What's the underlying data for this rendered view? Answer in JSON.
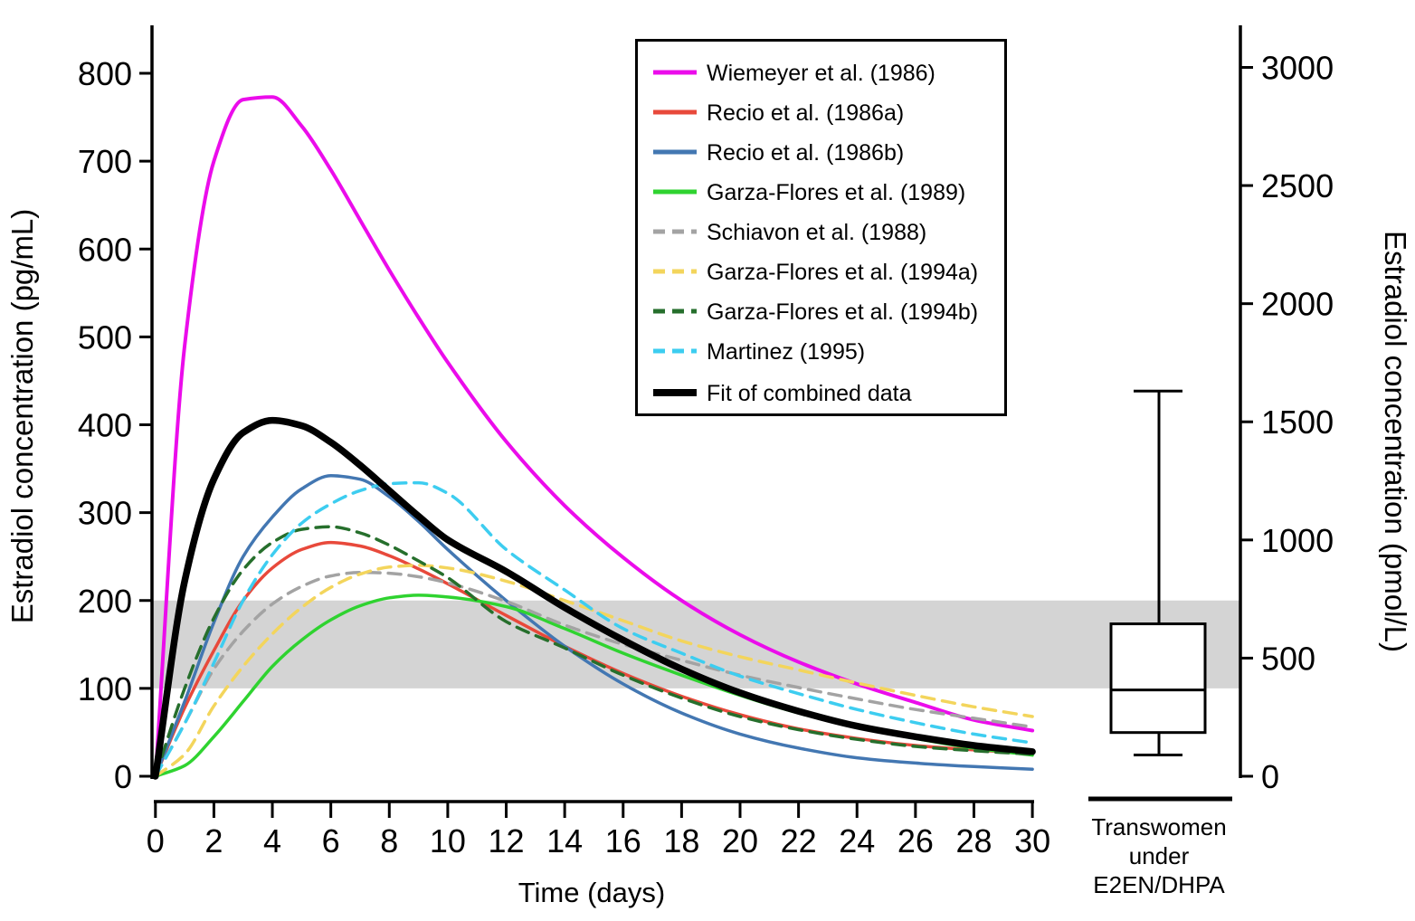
{
  "figure": {
    "background": "#ffffff",
    "description": "Pharmacokinetic curves of estradiol after intramuscular estradiol enanthate from multiple studies, with box plot of levels in transwomen"
  },
  "chart_data": {
    "type": "line",
    "x_axis": {
      "label": "Time (days)",
      "ticks": [
        0,
        2,
        4,
        6,
        8,
        10,
        12,
        14,
        16,
        18,
        20,
        22,
        24,
        26,
        28,
        30
      ],
      "range": [
        0,
        30
      ]
    },
    "y_axis_left": {
      "label": "Estradiol concentration (pg/mL)",
      "ticks": [
        0,
        100,
        200,
        300,
        400,
        500,
        600,
        700,
        800
      ],
      "range": [
        0,
        850
      ]
    },
    "y_axis_right": {
      "label": "Estradiol concentration (pmol/L)",
      "ticks": [
        0,
        500,
        1000,
        1500,
        2000,
        2500,
        3000
      ],
      "range": [
        0,
        3180
      ]
    },
    "reference_band": {
      "low_pg_ml": 100,
      "high_pg_ml": 200,
      "color": "#d4d4d4"
    },
    "sample_days": [
      0,
      1,
      2,
      3,
      4,
      5,
      6,
      7,
      8,
      9,
      10,
      12,
      14,
      16,
      18,
      20,
      22,
      24,
      26,
      28,
      30
    ],
    "series": [
      {
        "name": "Wiemeyer et al. (1986)",
        "color": "#eb0ceb",
        "style": "solid",
        "width": 4,
        "values": [
          0,
          490,
          700,
          770,
          773,
          740,
          690,
          633,
          576,
          522,
          471,
          381,
          308,
          249,
          200,
          161,
          130,
          105,
          84,
          64,
          52
        ]
      },
      {
        "name": "Recio et al. (1986a)",
        "color": "#e8493b",
        "style": "solid",
        "width": 3.5,
        "values": [
          0,
          78,
          143,
          200,
          237,
          258,
          266,
          262,
          251,
          236,
          219,
          183,
          148,
          117,
          91,
          70,
          54,
          43,
          35,
          30,
          26
        ]
      },
      {
        "name": "Recio et al. (1986b)",
        "color": "#4377b2",
        "style": "solid",
        "width": 3.5,
        "values": [
          0,
          85,
          175,
          250,
          295,
          327,
          342,
          338,
          318,
          290,
          258,
          200,
          148,
          105,
          72,
          48,
          32,
          21,
          15,
          11,
          8
        ]
      },
      {
        "name": "Garza-Flores et al. (1989)",
        "color": "#2fd330",
        "style": "solid",
        "width": 3.5,
        "values": [
          0,
          12,
          45,
          85,
          125,
          155,
          178,
          194,
          203,
          206,
          204,
          193,
          168,
          140,
          115,
          92,
          72,
          56,
          43,
          32,
          24
        ]
      },
      {
        "name": "Schiavon et al. (1988)",
        "color": "#a3a3a3",
        "style": "dashed",
        "width": 3.5,
        "values": [
          0,
          60,
          122,
          165,
          196,
          216,
          228,
          232,
          231,
          227,
          220,
          199,
          172,
          150,
          132,
          115,
          101,
          88,
          76,
          66,
          56
        ]
      },
      {
        "name": "Garza-Flores et al. (1994a)",
        "color": "#f3d55c",
        "style": "dashed",
        "width": 3.5,
        "values": [
          0,
          25,
          80,
          125,
          162,
          192,
          215,
          230,
          238,
          240,
          237,
          222,
          200,
          177,
          154,
          136,
          121,
          106,
          92,
          79,
          68
        ]
      },
      {
        "name": "Garza-Flores et al. (1994b)",
        "color": "#266f2c",
        "style": "dashed",
        "width": 3.5,
        "values": [
          0,
          100,
          180,
          235,
          266,
          281,
          284,
          277,
          263,
          245,
          226,
          176,
          146,
          115,
          89,
          68,
          53,
          42,
          34,
          29,
          25
        ]
      },
      {
        "name": "Martinez (1995)",
        "color": "#3dcdf0",
        "style": "dashed",
        "width": 3.5,
        "values": [
          0,
          60,
          129,
          200,
          252,
          288,
          310,
          325,
          333,
          334,
          322,
          258,
          212,
          168,
          140,
          114,
          94,
          76,
          61,
          48,
          38
        ]
      },
      {
        "name": "Fit of combined data",
        "color": "#000000",
        "style": "solid",
        "width": 7.5,
        "values": [
          0,
          222,
          338,
          391,
          405,
          399,
          380,
          354,
          325,
          296,
          269,
          233,
          192,
          155,
          122,
          95,
          74,
          57,
          45,
          35,
          28
        ]
      }
    ],
    "legend": {
      "position": "top-right",
      "border_color": "#000000"
    },
    "boxplot": {
      "group_label_lines": [
        "Transwomen",
        "under",
        "E2EN/DHPA"
      ],
      "units": "pmol/L",
      "whisker_low": 90,
      "q1": 185,
      "median": 365,
      "q3": 645,
      "whisker_high": 1630
    }
  }
}
